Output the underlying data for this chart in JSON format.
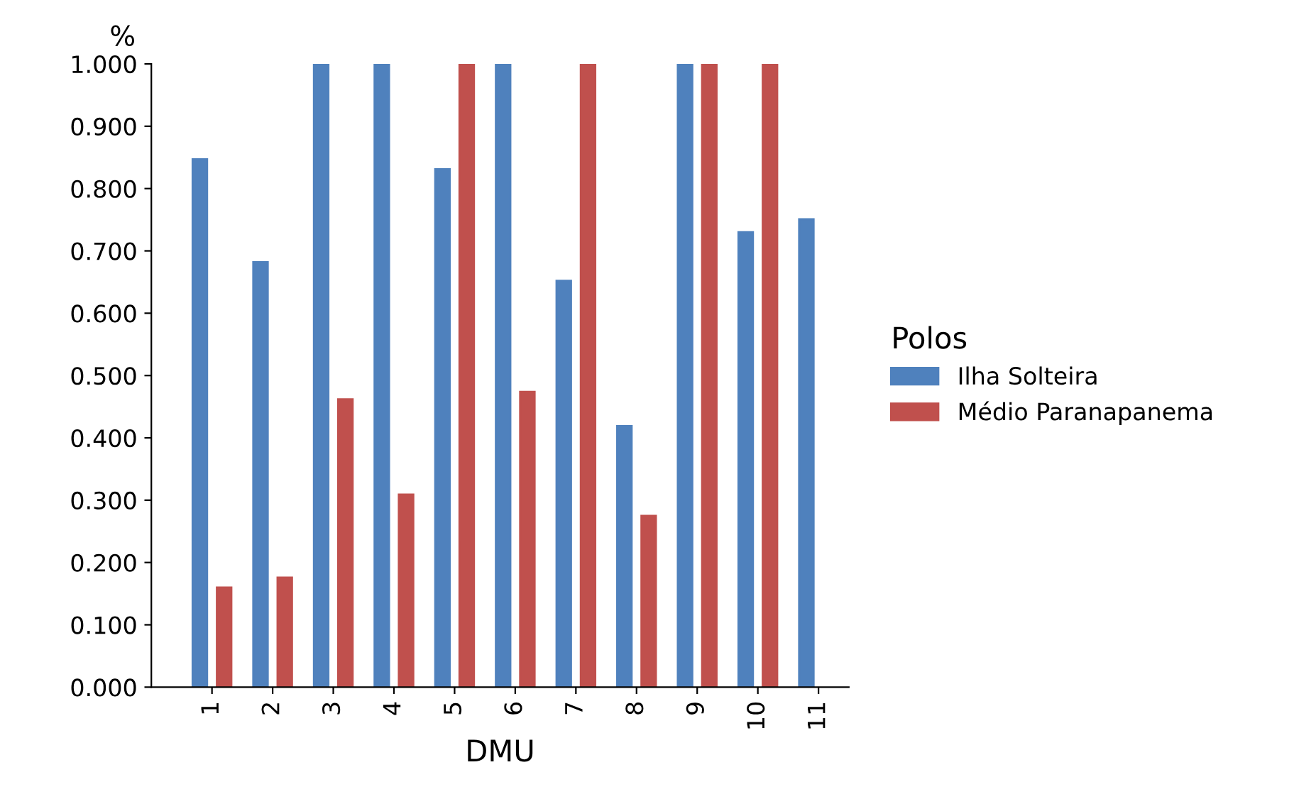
{
  "chart_data": {
    "type": "bar",
    "xlabel": "DMU",
    "ylabel": "%",
    "legend_title": "Polos",
    "categories": [
      "1",
      "2",
      "3",
      "4",
      "5",
      "6",
      "7",
      "8",
      "9",
      "10",
      "11"
    ],
    "series": [
      {
        "name": "Ilha Solteira",
        "color": "#4f81bd",
        "values": [
          0.847,
          0.682,
          1.0,
          1.0,
          0.831,
          1.0,
          0.652,
          0.419,
          1.0,
          0.73,
          0.751
        ]
      },
      {
        "name": "Médio Paranapanema",
        "color": "#c0504d",
        "values": [
          0.16,
          0.176,
          0.462,
          0.309,
          1.0,
          0.474,
          1.0,
          0.275,
          1.0,
          1.0,
          null
        ]
      }
    ],
    "ylim": [
      0,
      1
    ],
    "yticks": [
      {
        "value": 0,
        "label": "0.000"
      },
      {
        "value": 0.1,
        "label": "0.100"
      },
      {
        "value": 0.2,
        "label": "0.200"
      },
      {
        "value": 0.3,
        "label": "0.300"
      },
      {
        "value": 0.4,
        "label": "0.400"
      },
      {
        "value": 0.5,
        "label": "0.500"
      },
      {
        "value": 0.6,
        "label": "0.600"
      },
      {
        "value": 0.7,
        "label": "0.700"
      },
      {
        "value": 0.8,
        "label": "0.800"
      },
      {
        "value": 0.9,
        "label": "0.900"
      },
      {
        "value": 1,
        "label": "1.000"
      }
    ],
    "grid": false,
    "legend": "right"
  }
}
